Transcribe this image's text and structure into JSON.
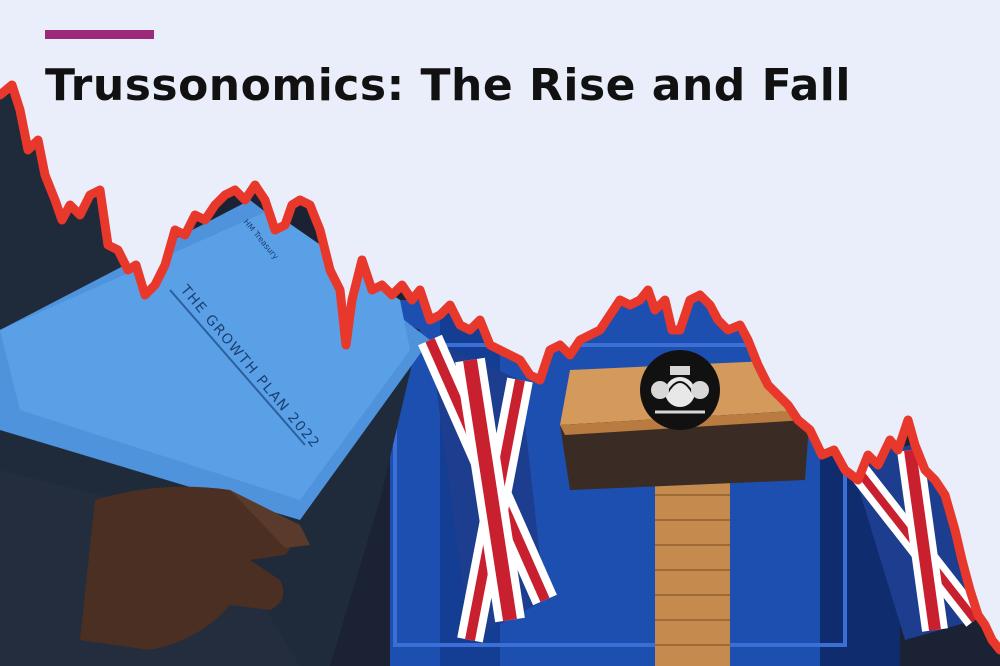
{
  "header": {
    "title": "Trussonomics: The Rise and Fall"
  },
  "document": {
    "publisher": "HM Treasury",
    "title": "THE GROWTH PLAN 2022"
  },
  "colors": {
    "background": "#e9eefa",
    "accent": "#9b2a7b",
    "trend_line": "#e8382b",
    "folder_blue": "#5aa0e6",
    "backdrop_blue": "#1c4fb0",
    "lectern_wood": "#c58a4e",
    "jacket": "#1f2a3a"
  },
  "icons": {
    "crest": "royal-coat-of-arms-icon",
    "flags": "union-jack-icon"
  }
}
